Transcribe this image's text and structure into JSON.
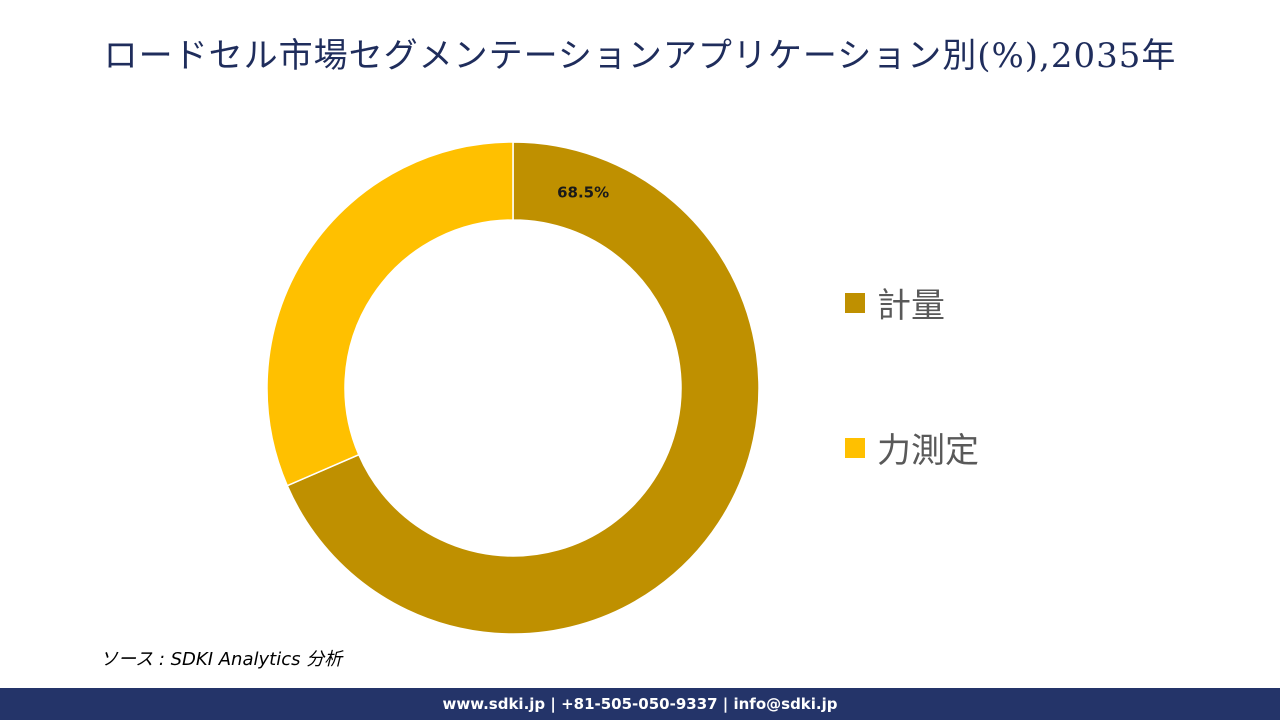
{
  "chart_data": {
    "type": "pie",
    "title": "ロードセル市場セグメンテーションアプリケーション別(%),2035年",
    "donut": true,
    "legend_position": "right",
    "series": [
      {
        "name": "計量",
        "value": 68.5,
        "color": "#bf9000",
        "label": "68.5%"
      },
      {
        "name": "力測定",
        "value": 31.5,
        "color": "#ffc000",
        "label": ""
      }
    ]
  },
  "source_text": "ソース : SDKI Analytics 分析",
  "footer_text": "www.sdki.jp | +81-505-050-9337 | info@sdki.jp"
}
